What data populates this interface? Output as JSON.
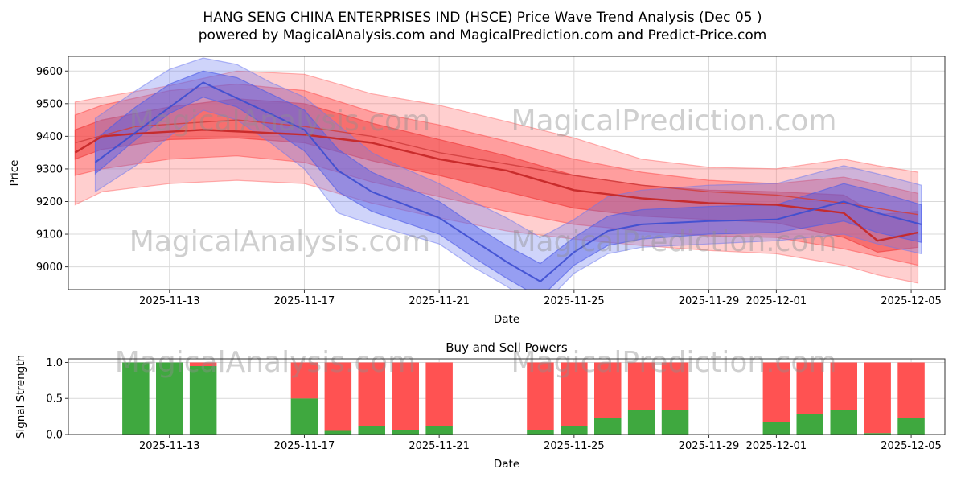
{
  "figure": {
    "title_line1": "HANG SENG CHINA ENTERPRISES IND (HSCE) Price Wave Trend Analysis (Dec 05 )",
    "title_line2": "powered by MagicalAnalysis.com and MagicalPrediction.com and Predict-Price.com",
    "background": "#ffffff"
  },
  "watermarks": {
    "analysis": "MagicalAnalysis.com",
    "prediction": "MagicalPrediction.com"
  },
  "chart_data": [
    {
      "type": "area",
      "name": "price-wave-trend",
      "xlabel": "Date",
      "ylabel": "Price",
      "xlim_days": [
        0,
        26
      ],
      "ylim": [
        8930,
        9645
      ],
      "grid": true,
      "legend": "none",
      "xticks": [
        {
          "day": 3,
          "label": "2025-11-13"
        },
        {
          "day": 7,
          "label": "2025-11-17"
        },
        {
          "day": 11,
          "label": "2025-11-21"
        },
        {
          "day": 15,
          "label": "2025-11-25"
        },
        {
          "day": 19,
          "label": "2025-11-29"
        },
        {
          "day": 21,
          "label": "2025-12-01"
        },
        {
          "day": 25,
          "label": "2025-12-05"
        }
      ],
      "yticks": [
        {
          "v": 9000,
          "label": "9000"
        },
        {
          "v": 9100,
          "label": "9100"
        },
        {
          "v": 9200,
          "label": "9200"
        },
        {
          "v": 9300,
          "label": "9300"
        },
        {
          "v": 9400,
          "label": "9400"
        },
        {
          "v": 9500,
          "label": "9500"
        },
        {
          "v": 9600,
          "label": "9600"
        }
      ],
      "bands": [
        {
          "name": "red-forecast-band-outer",
          "color": "#ff6060",
          "opacity": 0.3,
          "points": [
            [
              0.2,
              9190,
              9505
            ],
            [
              1,
              9230,
              9520
            ],
            [
              3,
              9255,
              9555
            ],
            [
              5,
              9265,
              9600
            ],
            [
              7,
              9255,
              9590
            ],
            [
              9,
              9195,
              9530
            ],
            [
              11,
              9150,
              9495
            ],
            [
              13,
              9110,
              9445
            ],
            [
              15,
              9085,
              9395
            ],
            [
              17,
              9065,
              9330
            ],
            [
              19,
              9050,
              9305
            ],
            [
              21,
              9040,
              9300
            ],
            [
              23,
              9005,
              9330
            ],
            [
              24,
              8975,
              9310
            ],
            [
              25.2,
              8950,
              9290
            ]
          ]
        },
        {
          "name": "red-forecast-band-mid",
          "color": "#ff5050",
          "opacity": 0.38,
          "points": [
            [
              0.2,
              9280,
              9465
            ],
            [
              1,
              9300,
              9495
            ],
            [
              3,
              9330,
              9540
            ],
            [
              5,
              9340,
              9560
            ],
            [
              7,
              9320,
              9540
            ],
            [
              9,
              9260,
              9475
            ],
            [
              11,
              9215,
              9435
            ],
            [
              13,
              9170,
              9385
            ],
            [
              15,
              9130,
              9330
            ],
            [
              17,
              9110,
              9290
            ],
            [
              19,
              9095,
              9265
            ],
            [
              21,
              9090,
              9255
            ],
            [
              23,
              9055,
              9275
            ],
            [
              25.2,
              9005,
              9225
            ]
          ]
        },
        {
          "name": "red-forecast-band-inner",
          "color": "#f04040",
          "opacity": 0.5,
          "points": [
            [
              0.2,
              9330,
              9420
            ],
            [
              1,
              9360,
              9450
            ],
            [
              3,
              9390,
              9490
            ],
            [
              5,
              9395,
              9515
            ],
            [
              7,
              9380,
              9500
            ],
            [
              9,
              9325,
              9440
            ],
            [
              11,
              9280,
              9390
            ],
            [
              13,
              9230,
              9340
            ],
            [
              15,
              9180,
              9280
            ],
            [
              17,
              9155,
              9250
            ],
            [
              19,
              9145,
              9235
            ],
            [
              21,
              9135,
              9230
            ],
            [
              23,
              9090,
              9220
            ],
            [
              24,
              9045,
              9160
            ],
            [
              25.2,
              9060,
              9170
            ]
          ]
        },
        {
          "name": "blue-wave-band-outer",
          "color": "#6b78ef",
          "opacity": 0.32,
          "points": [
            [
              0.8,
              9230,
              9455
            ],
            [
              2,
              9310,
              9540
            ],
            [
              3,
              9400,
              9605
            ],
            [
              4,
              9480,
              9640
            ],
            [
              5,
              9450,
              9620
            ],
            [
              6,
              9380,
              9565
            ],
            [
              7,
              9300,
              9520
            ],
            [
              8,
              9165,
              9435
            ],
            [
              9,
              9130,
              9350
            ],
            [
              10,
              9100,
              9300
            ],
            [
              11,
              9070,
              9255
            ],
            [
              12,
              9000,
              9200
            ],
            [
              13,
              8940,
              9150
            ],
            [
              14,
              8875,
              9090
            ],
            [
              15,
              8980,
              9145
            ],
            [
              16,
              9040,
              9215
            ],
            [
              17,
              9060,
              9235
            ],
            [
              19,
              9070,
              9250
            ],
            [
              21,
              9080,
              9255
            ],
            [
              23,
              9100,
              9310
            ],
            [
              24,
              9070,
              9285
            ],
            [
              25.3,
              9040,
              9250
            ]
          ]
        },
        {
          "name": "blue-wave-band-inner",
          "color": "#4f5de8",
          "opacity": 0.45,
          "points": [
            [
              0.8,
              9285,
              9390
            ],
            [
              2,
              9390,
              9490
            ],
            [
              3,
              9470,
              9560
            ],
            [
              4,
              9520,
              9600
            ],
            [
              5,
              9490,
              9580
            ],
            [
              7,
              9355,
              9480
            ],
            [
              8,
              9230,
              9360
            ],
            [
              9,
              9170,
              9290
            ],
            [
              11,
              9100,
              9200
            ],
            [
              12,
              9030,
              9130
            ],
            [
              13,
              8965,
              9065
            ],
            [
              14,
              8905,
              9010
            ],
            [
              15,
              9005,
              9090
            ],
            [
              16,
              9065,
              9155
            ],
            [
              17,
              9085,
              9175
            ],
            [
              19,
              9100,
              9185
            ],
            [
              21,
              9105,
              9190
            ],
            [
              23,
              9140,
              9255
            ],
            [
              24,
              9105,
              9230
            ],
            [
              25.3,
              9075,
              9190
            ]
          ]
        }
      ],
      "lines": [
        {
          "name": "red-trend-line",
          "color": "#c62828",
          "width": 2.4,
          "opacity": 0.95,
          "points": [
            [
              0.2,
              9350
            ],
            [
              1,
              9400
            ],
            [
              2,
              9408
            ],
            [
              4,
              9420
            ],
            [
              7,
              9405
            ],
            [
              9,
              9380
            ],
            [
              11,
              9330
            ],
            [
              13,
              9295
            ],
            [
              15,
              9235
            ],
            [
              17,
              9210
            ],
            [
              19,
              9195
            ],
            [
              21,
              9190
            ],
            [
              23,
              9165
            ],
            [
              24,
              9080
            ],
            [
              25.2,
              9105
            ]
          ]
        },
        {
          "name": "red-trend-line-secondary",
          "color": "#d04040",
          "width": 1.4,
          "opacity": 0.9,
          "points": [
            [
              0.2,
              9380
            ],
            [
              2,
              9430
            ],
            [
              5,
              9450
            ],
            [
              7,
              9430
            ],
            [
              9,
              9400
            ],
            [
              11,
              9350
            ],
            [
              13,
              9315
            ],
            [
              15,
              9280
            ],
            [
              17,
              9250
            ],
            [
              19,
              9230
            ],
            [
              21,
              9220
            ],
            [
              23,
              9195
            ],
            [
              25.2,
              9160
            ]
          ]
        },
        {
          "name": "blue-wave-line",
          "color": "#3c4cd0",
          "width": 2.0,
          "opacity": 0.9,
          "points": [
            [
              0.8,
              9320
            ],
            [
              4,
              9565
            ],
            [
              7,
              9420
            ],
            [
              8,
              9295
            ],
            [
              9,
              9230
            ],
            [
              11,
              9150
            ],
            [
              13,
              9015
            ],
            [
              14,
              8955
            ],
            [
              15,
              9045
            ],
            [
              16,
              9110
            ],
            [
              17,
              9130
            ],
            [
              19,
              9140
            ],
            [
              21,
              9145
            ],
            [
              23,
              9200
            ],
            [
              24,
              9165
            ],
            [
              25.3,
              9130
            ]
          ]
        }
      ]
    },
    {
      "type": "bar",
      "name": "buy-sell-powers",
      "title": "Buy and Sell Powers",
      "xlabel": "Date",
      "ylabel": "Signal Strength",
      "xlim_days": [
        0,
        26
      ],
      "ylim": [
        0,
        1.05
      ],
      "grid": true,
      "bar_width_days": 0.8,
      "colors": {
        "buy": "#3fa83f",
        "sell": "#ff5252"
      },
      "xticks": [
        {
          "day": 3,
          "label": "2025-11-13"
        },
        {
          "day": 7,
          "label": "2025-11-17"
        },
        {
          "day": 11,
          "label": "2025-11-21"
        },
        {
          "day": 15,
          "label": "2025-11-25"
        },
        {
          "day": 19,
          "label": "2025-11-29"
        },
        {
          "day": 21,
          "label": "2025-12-01"
        },
        {
          "day": 25,
          "label": "2025-12-05"
        }
      ],
      "yticks": [
        {
          "v": 0,
          "label": "0.0"
        },
        {
          "v": 0.5,
          "label": "0.5"
        },
        {
          "v": 1,
          "label": "1.0"
        }
      ],
      "bars": {
        "dates": [
          "2025-11-12",
          "2025-11-13",
          "2025-11-14",
          "2025-11-17",
          "2025-11-18",
          "2025-11-19",
          "2025-11-20",
          "2025-11-21",
          "2025-11-24",
          "2025-11-25",
          "2025-11-26",
          "2025-11-27",
          "2025-11-28",
          "2025-12-01",
          "2025-12-02",
          "2025-12-03",
          "2025-12-04",
          "2025-12-05"
        ],
        "days": [
          2,
          3,
          4,
          7,
          8,
          9,
          10,
          11,
          14,
          15,
          16,
          17,
          18,
          21,
          22,
          23,
          24,
          25
        ],
        "buy": [
          1.0,
          1.0,
          0.95,
          0.5,
          0.05,
          0.12,
          0.06,
          0.12,
          0.06,
          0.12,
          0.23,
          0.34,
          0.34,
          0.17,
          0.28,
          0.34,
          0.02,
          0.23
        ],
        "sell": [
          0.0,
          0.0,
          0.05,
          0.5,
          0.95,
          0.88,
          0.94,
          0.88,
          0.94,
          0.88,
          0.77,
          0.66,
          0.66,
          0.83,
          0.72,
          0.66,
          0.98,
          0.77
        ]
      }
    }
  ]
}
